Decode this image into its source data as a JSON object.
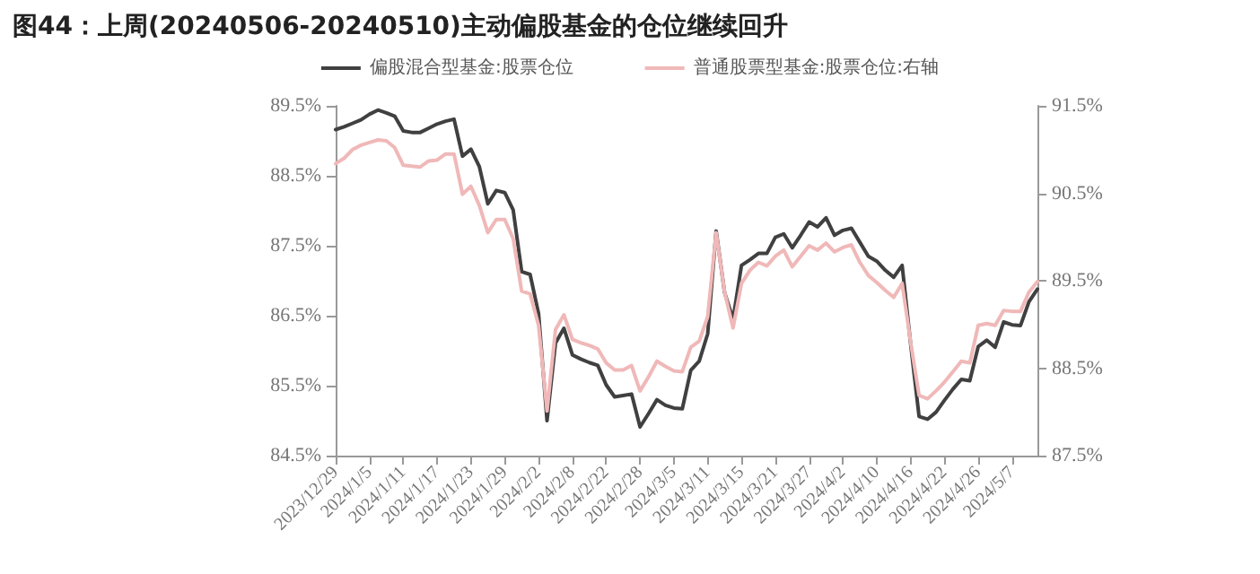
{
  "chart_data": {
    "type": "line",
    "title": "图44：上周(20240506-20240510)主动偏股基金的仓位继续回升",
    "categories": [
      "2023/12/29",
      null,
      null,
      null,
      "2024/1/5",
      null,
      null,
      null,
      "2024/1/11",
      null,
      null,
      null,
      "2024/1/17",
      null,
      null,
      null,
      "2024/1/23",
      null,
      null,
      null,
      "2024/1/29",
      null,
      null,
      null,
      "2024/2/2",
      null,
      null,
      null,
      "2024/2/8",
      null,
      null,
      null,
      "2024/2/22",
      null,
      null,
      null,
      "2024/2/28",
      null,
      null,
      null,
      "2024/3/5",
      null,
      null,
      null,
      "2024/3/11",
      null,
      null,
      null,
      "2024/3/15",
      null,
      null,
      null,
      "2024/3/21",
      null,
      null,
      null,
      "2024/3/27",
      null,
      null,
      null,
      "2024/4/2",
      null,
      null,
      null,
      "2024/4/10",
      null,
      null,
      null,
      "2024/4/16",
      null,
      null,
      null,
      "2024/4/22",
      null,
      null,
      null,
      "2024/4/26",
      null,
      null,
      null,
      "2024/5/7",
      null,
      null,
      null
    ],
    "series": [
      {
        "name": "偏股混合型基金:股票仓位",
        "color": "#404040",
        "values": [
          89.16,
          89.2,
          89.25,
          89.3,
          89.38,
          89.44,
          89.4,
          89.35,
          89.14,
          89.12,
          89.12,
          89.18,
          89.24,
          89.28,
          89.31,
          88.78,
          88.88,
          88.63,
          88.1,
          88.29,
          88.26,
          88.01,
          87.13,
          87.09,
          86.53,
          85.0,
          86.11,
          86.32,
          85.94,
          85.88,
          85.83,
          85.79,
          85.51,
          85.34,
          85.36,
          85.38,
          84.91,
          85.1,
          85.3,
          85.22,
          85.18,
          85.17,
          85.72,
          85.85,
          86.24,
          87.71,
          86.83,
          86.45,
          87.22,
          87.3,
          87.39,
          87.39,
          87.62,
          87.67,
          87.47,
          87.65,
          87.84,
          87.77,
          87.9,
          87.65,
          87.72,
          87.75,
          87.55,
          87.35,
          87.28,
          87.15,
          87.05,
          87.22,
          86.1,
          85.06,
          85.02,
          85.12,
          85.29,
          85.45,
          85.59,
          85.57,
          86.06,
          86.15,
          86.05,
          86.41,
          86.37,
          86.36,
          86.7,
          86.88
        ]
      },
      {
        "name": "普通股票型基金:股票仓位:右轴",
        "color": "#f0b8b8",
        "axis": "y2",
        "values": [
          90.84,
          90.9,
          91.0,
          91.05,
          91.08,
          91.11,
          91.1,
          91.02,
          90.82,
          90.81,
          90.8,
          90.87,
          90.88,
          90.95,
          90.95,
          90.49,
          90.58,
          90.36,
          90.05,
          90.2,
          90.2,
          89.98,
          89.38,
          89.35,
          88.99,
          88.01,
          88.94,
          89.11,
          88.83,
          88.79,
          88.76,
          88.72,
          88.56,
          88.48,
          88.48,
          88.53,
          88.24,
          88.4,
          88.58,
          88.52,
          88.47,
          88.46,
          88.74,
          88.81,
          89.09,
          90.05,
          89.37,
          88.96,
          89.47,
          89.62,
          89.71,
          89.67,
          89.78,
          89.85,
          89.66,
          89.78,
          89.9,
          89.85,
          89.93,
          89.83,
          89.88,
          89.91,
          89.71,
          89.56,
          89.48,
          89.39,
          89.31,
          89.47,
          88.8,
          88.19,
          88.15,
          88.24,
          88.34,
          88.46,
          88.58,
          88.56,
          88.99,
          89.01,
          88.99,
          89.16,
          89.15,
          89.15,
          89.37,
          89.49
        ]
      }
    ],
    "ylim": [
      84.5,
      89.5
    ],
    "yticks": [
      {
        "value": 84.5,
        "label": "84.5%"
      },
      {
        "value": 85.5,
        "label": "85.5%"
      },
      {
        "value": 86.5,
        "label": "86.5%"
      },
      {
        "value": 87.5,
        "label": "87.5%"
      },
      {
        "value": 88.5,
        "label": "88.5%"
      },
      {
        "value": 89.5,
        "label": "89.5%"
      }
    ],
    "y2lim": [
      87.5,
      91.5
    ],
    "y2ticks": [
      {
        "value": 87.5,
        "label": "87.5%"
      },
      {
        "value": 88.5,
        "label": "88.5%"
      },
      {
        "value": 89.5,
        "label": "89.5%"
      },
      {
        "value": 90.5,
        "label": "90.5%"
      },
      {
        "value": 91.5,
        "label": "91.5%"
      }
    ],
    "legend": "top",
    "grid": false,
    "marker": "none",
    "line_style": "solid"
  }
}
